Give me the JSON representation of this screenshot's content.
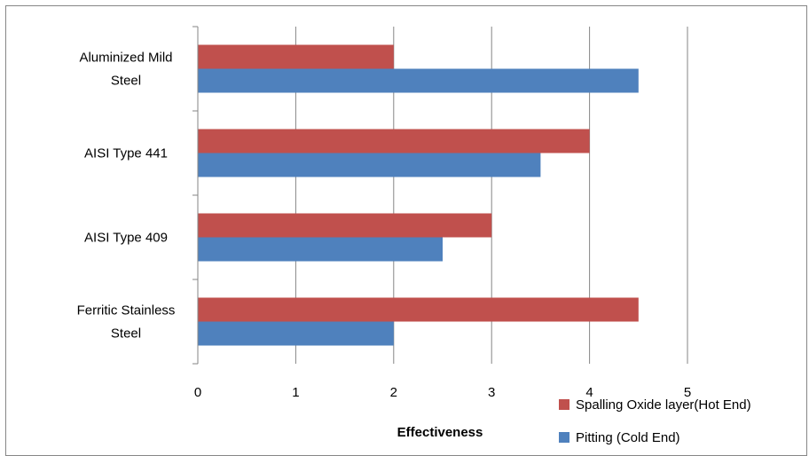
{
  "chart_data": {
    "type": "bar",
    "orientation": "horizontal",
    "categories": [
      "Aluminized Mild Steel",
      "AISI Type 441",
      "AISI Type 409",
      "Ferritic Stainless Steel"
    ],
    "category_label_lines": [
      [
        "Aluminized Mild",
        "Steel"
      ],
      [
        "AISI Type 441"
      ],
      [
        "AISI Type 409"
      ],
      [
        "Ferritic Stainless",
        "Steel"
      ]
    ],
    "series": [
      {
        "name": "Spalling Oxide layer(Hot End)",
        "color": "#c0504d",
        "values": [
          2,
          4,
          3,
          4.5
        ]
      },
      {
        "name": "Pitting (Cold End)",
        "color": "#4f81bd",
        "values": [
          4.5,
          3.5,
          2.5,
          2
        ]
      }
    ],
    "xlabel": "Effectiveness",
    "ylabel": "",
    "xlim": [
      0,
      5
    ],
    "xticks": [
      "0",
      "1",
      "2",
      "3",
      "4",
      "5"
    ],
    "grid": "vertical major gridlines",
    "legend_position": "bottom-right"
  }
}
